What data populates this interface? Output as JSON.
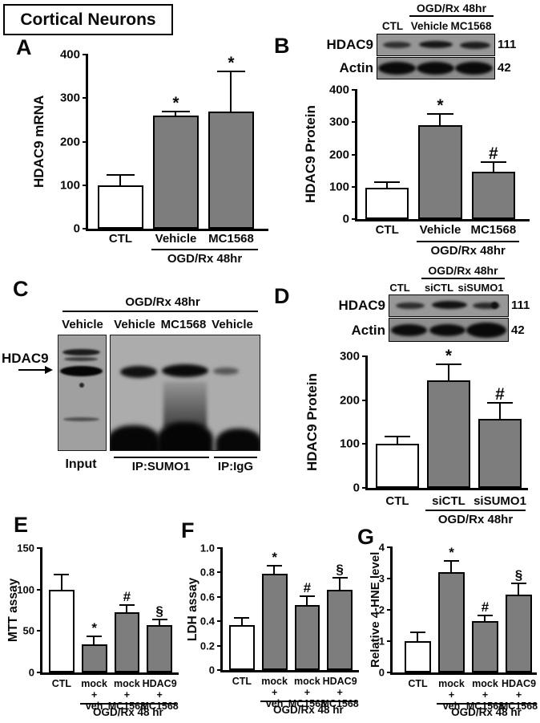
{
  "figure_title": "Cortical Neurons",
  "colors": {
    "bar_gray": "#7d7d7d",
    "bar_white": "#ffffff",
    "axis": "#000000",
    "blot_bg": "#989898",
    "blot_bg_light": "#a9a9a9"
  },
  "panels": {
    "A": {
      "label": "A"
    },
    "B": {
      "label": "B",
      "blot": {
        "header": "OGD/Rx 48hr",
        "lanes": [
          "CTL",
          "Vehicle",
          "MC1568"
        ],
        "rows": [
          {
            "protein": "HDAC9",
            "kda": "111"
          },
          {
            "protein": "Actin",
            "kda": "42"
          }
        ]
      }
    },
    "C": {
      "label": "C",
      "header": "OGD/Rx 48hr",
      "lanes": [
        "Vehicle",
        "Vehicle",
        "MC1568",
        "Vehicle"
      ],
      "protein": "HDAC9",
      "group_labels": [
        "Input",
        "IP:SUMO1",
        "IP:IgG"
      ]
    },
    "D": {
      "label": "D",
      "blot": {
        "header": "OGD/Rx 48hr",
        "lanes": [
          "CTL",
          "siCTL",
          "siSUMO1"
        ],
        "rows": [
          {
            "protein": "HDAC9",
            "kda": "111"
          },
          {
            "protein": "Actin",
            "kda": "42"
          }
        ]
      }
    },
    "E": {
      "label": "E"
    },
    "F": {
      "label": "F"
    },
    "G": {
      "label": "G"
    }
  },
  "chart_data": [
    {
      "id": "A",
      "type": "bar",
      "ylabel": "HDAC9 mRNA",
      "ylim": [
        0,
        400
      ],
      "yticks": [
        0,
        100,
        200,
        300,
        400
      ],
      "ytick_labels": [
        "0",
        "100",
        "200",
        "300",
        "400"
      ],
      "categories": [
        "CTL",
        "Vehicle",
        "MC1568"
      ],
      "values": [
        100,
        260,
        270
      ],
      "errors": [
        22,
        8,
        90
      ],
      "annotations": [
        "",
        "*",
        "*"
      ],
      "bar_fills": [
        "white",
        "gray",
        "gray"
      ],
      "group_label": "OGD/Rx 48hr",
      "group_start_index": 1
    },
    {
      "id": "B",
      "type": "bar",
      "ylabel": "HDAC9 Protein",
      "ylim": [
        0,
        400
      ],
      "yticks": [
        0,
        100,
        200,
        300,
        400
      ],
      "ytick_labels": [
        "0",
        "100",
        "200",
        "300",
        "400"
      ],
      "categories": [
        "CTL",
        "Vehicle",
        "MC1568"
      ],
      "values": [
        97,
        290,
        147
      ],
      "errors": [
        16,
        33,
        28
      ],
      "annotations": [
        "",
        "*",
        "#"
      ],
      "bar_fills": [
        "white",
        "gray",
        "gray"
      ],
      "group_label": "OGD/Rx 48hr",
      "group_start_index": 1
    },
    {
      "id": "D",
      "type": "bar",
      "ylabel": "HDAC9 Protein",
      "ylim": [
        0,
        300
      ],
      "yticks": [
        0,
        100,
        200,
        300
      ],
      "ytick_labels": [
        "0",
        "100",
        "200",
        "300"
      ],
      "categories": [
        "CTL",
        "siCTL",
        "siSUMO1"
      ],
      "values": [
        100,
        245,
        158
      ],
      "errors": [
        15,
        35,
        35
      ],
      "annotations": [
        "",
        "*",
        "#"
      ],
      "bar_fills": [
        "white",
        "gray",
        "gray"
      ],
      "group_label": "OGD/Rx 48hr",
      "group_start_index": 1
    },
    {
      "id": "E",
      "type": "bar",
      "ylabel": "MTT assay",
      "ylim": [
        0,
        150
      ],
      "yticks": [
        0,
        50,
        100,
        150
      ],
      "ytick_labels": [
        "0",
        "50",
        "100",
        "150"
      ],
      "categories": [
        "CTL",
        "mock\n+\nveh",
        "mock\n+\nMC1568",
        "HDAC9\n+\nMC1568"
      ],
      "values": [
        100,
        34,
        73,
        57
      ],
      "errors": [
        17,
        9,
        7,
        6
      ],
      "annotations": [
        "",
        "*",
        "#",
        "§"
      ],
      "bar_fills": [
        "white",
        "gray",
        "gray",
        "gray"
      ],
      "group_label": "OGD/Rx 48 hr",
      "group_start_index": 1
    },
    {
      "id": "F",
      "type": "bar",
      "ylabel": "LDH assay",
      "ylim": [
        0,
        1.0
      ],
      "yticks": [
        0,
        0.2,
        0.4,
        0.6,
        0.8,
        1.0
      ],
      "ytick_labels": [
        "0",
        "0.2",
        "0.4",
        "0.6",
        "0.8",
        "1.0"
      ],
      "categories": [
        "CTL",
        "mock\n+\nveh",
        "mock\n+\nMC1568",
        "HDAC9\n+\nMC1568"
      ],
      "values": [
        0.37,
        0.79,
        0.53,
        0.66
      ],
      "errors": [
        0.05,
        0.06,
        0.07,
        0.09
      ],
      "annotations": [
        "",
        "*",
        "#",
        "§"
      ],
      "bar_fills": [
        "white",
        "gray",
        "gray",
        "gray"
      ],
      "group_label": "OGD/Rx 48 hr",
      "group_start_index": 1
    },
    {
      "id": "G",
      "type": "bar",
      "ylabel": "Relative 4-HNE level",
      "ylim": [
        0,
        4
      ],
      "yticks": [
        0,
        1,
        2,
        3,
        4
      ],
      "ytick_labels": [
        "0",
        "1",
        "2",
        "3",
        "4"
      ],
      "categories": [
        "CTL",
        "mock\n+\nveh",
        "mock\n+\nMC1568",
        "HDAC9\n+\nMC1568"
      ],
      "values": [
        1.0,
        3.2,
        1.65,
        2.5
      ],
      "errors": [
        0.25,
        0.35,
        0.15,
        0.33
      ],
      "annotations": [
        "",
        "*",
        "#",
        "§"
      ],
      "bar_fills": [
        "white",
        "gray",
        "gray",
        "gray"
      ],
      "group_label": "OGD/Rx 48 hr",
      "group_start_index": 1
    }
  ]
}
